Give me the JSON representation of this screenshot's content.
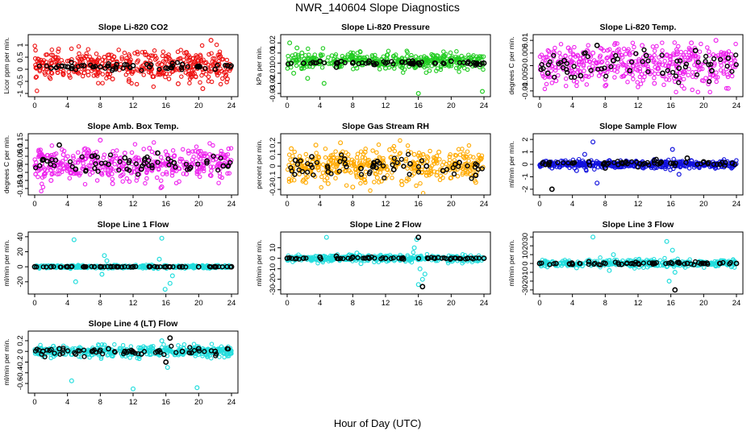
{
  "figure": {
    "title": "NWR_140604  Slope Diagnostics",
    "xlabel": "Hour of Day (UTC)"
  },
  "colors": {
    "red": "#ee1111",
    "green": "#22cc22",
    "magenta": "#ee22ee",
    "orange": "#ffaa00",
    "blue": "#1111dd",
    "cyan": "#22dddd",
    "black": "#000000"
  },
  "chart_data": [
    {
      "type": "scatter",
      "title": "Slope Li-820 CO2",
      "ylabel": "Licor ppm per min.",
      "xlim": [
        0,
        24
      ],
      "xticks": [
        0,
        4,
        8,
        12,
        16,
        20,
        24
      ],
      "ylim": [
        -1.0,
        1.3
      ],
      "yticks": [
        -1.0,
        -0.5,
        0.0,
        0.5,
        1.0
      ],
      "series": [
        {
          "color": "red",
          "x": [
            0.5,
            1.5,
            2.5,
            3.5,
            4.5,
            5.5,
            6.5,
            7.5,
            8.5,
            9.5,
            10.5,
            11.5,
            12.5,
            13.5,
            14.5,
            15.5,
            16.5,
            17.5,
            18.5,
            19.5,
            20.5,
            21.5,
            22.5,
            23.5
          ],
          "y": [
            0.2,
            0.1,
            0.3,
            -0.2,
            0.4,
            0.1,
            -0.1,
            0.3,
            0.5,
            -0.4,
            0.2,
            -0.5,
            0.3,
            0.6,
            -0.3,
            0.2,
            0.4,
            -0.6,
            0.7,
            0.3,
            -0.8,
            1.2,
            0.5,
            -0.4
          ],
          "mean": 0.15,
          "spread": 0.3
        },
        {
          "color": "black",
          "x": [
            2,
            4,
            6,
            8,
            10,
            12,
            14,
            16,
            18,
            20,
            22,
            23.5
          ],
          "y": [
            0.05,
            0.1,
            0.15,
            0.1,
            0.2,
            0.15,
            0.1,
            0.05,
            0.2,
            0.1,
            0.0,
            0.15
          ],
          "mean": 0.1,
          "spread": 0.08
        }
      ]
    },
    {
      "type": "scatter",
      "title": "Slope Li-820 Pressure",
      "ylabel": "kPa per min.",
      "xlim": [
        0,
        24
      ],
      "xticks": [
        0,
        4,
        8,
        12,
        16,
        20,
        24
      ],
      "ylim": [
        -0.03,
        0.025
      ],
      "yticks": [
        -0.03,
        -0.02,
        -0.01,
        0.0,
        0.01,
        0.02
      ],
      "series": [
        {
          "color": "green",
          "x": [
            0.3,
            0.8,
            1.2,
            1.8,
            2.5,
            3.2,
            4.5,
            5.5,
            7,
            8.5,
            10,
            12,
            14,
            16,
            18,
            20,
            22,
            23.8
          ],
          "y": [
            0.02,
            -0.01,
            0.015,
            0.01,
            -0.015,
            0.005,
            -0.02,
            0.0,
            0.005,
            -0.005,
            0.0,
            -0.005,
            0.0,
            -0.03,
            0.0,
            0.005,
            0.0,
            -0.028
          ],
          "mean": 0.002,
          "spread": 0.004
        },
        {
          "color": "black",
          "x": [
            2,
            4,
            6,
            8,
            10,
            12,
            14,
            16,
            18,
            20,
            22,
            24
          ],
          "y": [
            0.0,
            0.002,
            -0.004,
            0.0,
            0.002,
            0.0,
            0.001,
            0.0,
            0.0,
            0.002,
            0.0,
            0.0
          ],
          "mean": 0.0,
          "spread": 0.001
        }
      ]
    },
    {
      "type": "scatter",
      "title": "Slope Li-820 Temp.",
      "ylabel": "degrees C per min.",
      "xlim": [
        0,
        24
      ],
      "xticks": [
        0,
        4,
        8,
        12,
        16,
        20,
        24
      ],
      "ylim": [
        -0.011,
        0.011
      ],
      "yticks": [
        -0.01,
        -0.005,
        0.0,
        0.005,
        0.01
      ],
      "series": [
        {
          "color": "magenta",
          "x": [
            0.5,
            2,
            3.5,
            5,
            6.5,
            8,
            9.5,
            11,
            12.5,
            14,
            15.5,
            17,
            18.5,
            20,
            21.5,
            23
          ],
          "y": [
            0.003,
            -0.006,
            0.007,
            -0.004,
            0.005,
            -0.008,
            0.006,
            -0.003,
            0.008,
            -0.007,
            0.004,
            -0.005,
            0.009,
            -0.006,
            0.01,
            -0.009
          ],
          "mean": 0.0,
          "spread": 0.004
        },
        {
          "color": "black",
          "x": [
            1,
            3,
            5,
            7,
            9,
            11,
            13,
            15,
            17,
            19,
            21,
            23
          ],
          "y": [
            -0.003,
            0.002,
            -0.004,
            0.008,
            0.002,
            -0.002,
            0.004,
            -0.003,
            -0.001,
            0.006,
            -0.002,
            0.003
          ],
          "mean": 0.0,
          "spread": 0.003
        }
      ]
    },
    {
      "type": "scatter",
      "title": "Slope Amb. Box Temp.",
      "ylabel": "degrees C per min.",
      "xlim": [
        0,
        24
      ],
      "xticks": [
        0,
        4,
        8,
        12,
        16,
        20,
        24
      ],
      "ylim": [
        -0.17,
        0.17
      ],
      "yticks": [
        -0.15,
        -0.1,
        -0.05,
        0.0,
        0.05,
        0.1,
        0.15
      ],
      "series": [
        {
          "color": "magenta",
          "x": [
            0.5,
            2,
            3.5,
            5,
            6.5,
            8,
            9.5,
            11,
            12.5,
            14,
            15.5,
            17,
            18.5,
            20,
            21.5,
            23
          ],
          "y": [
            0.08,
            -0.1,
            0.06,
            -0.05,
            0.09,
            0.15,
            -0.12,
            0.07,
            -0.08,
            0.1,
            -0.14,
            0.05,
            -0.06,
            0.08,
            -0.07,
            0.06
          ],
          "mean": 0.0,
          "spread": 0.05
        },
        {
          "color": "black",
          "x": [
            1,
            3,
            5,
            7,
            9,
            11,
            13,
            15,
            17,
            19,
            21,
            23
          ],
          "y": [
            0.03,
            0.12,
            -0.03,
            0.05,
            0.0,
            0.04,
            -0.03,
            0.07,
            0.01,
            -0.02,
            0.02,
            -0.01
          ],
          "mean": 0.0,
          "spread": 0.03
        }
      ]
    },
    {
      "type": "scatter",
      "title": "Slope Gas Stream RH",
      "ylabel": "percent per min.",
      "xlim": [
        0,
        24
      ],
      "xticks": [
        0,
        4,
        8,
        12,
        16,
        20,
        24
      ],
      "ylim": [
        -0.22,
        0.25
      ],
      "yticks": [
        -0.2,
        -0.1,
        0.0,
        0.1,
        0.2
      ],
      "series": [
        {
          "color": "orange",
          "x": [
            0.5,
            2,
            3.5,
            5,
            6.5,
            8,
            9.5,
            11,
            12.5,
            14,
            15.5,
            17,
            18.5,
            20,
            21.5,
            23
          ],
          "y": [
            0.15,
            -0.12,
            0.18,
            -0.15,
            0.2,
            -0.18,
            0.12,
            -0.1,
            0.14,
            -0.16,
            0.1,
            -0.08,
            0.12,
            -0.1,
            0.08,
            -0.14
          ],
          "mean": 0.0,
          "spread": 0.07
        },
        {
          "color": "black",
          "x": [
            1,
            3,
            5,
            7,
            9,
            11,
            13,
            15,
            17,
            19,
            21,
            23
          ],
          "y": [
            0.05,
            0.08,
            -0.05,
            0.06,
            -0.02,
            0.04,
            -0.03,
            0.02,
            0.0,
            -0.04,
            0.03,
            -0.08
          ],
          "mean": 0.0,
          "spread": 0.04
        }
      ]
    },
    {
      "type": "scatter",
      "title": "Slope Sample Flow",
      "ylabel": "ml/min per min.",
      "xlim": [
        0,
        24
      ],
      "xticks": [
        0,
        4,
        8,
        12,
        16,
        20,
        24
      ],
      "ylim": [
        -2.2,
        2.2
      ],
      "yticks": [
        -2,
        -1,
        0,
        1,
        2
      ],
      "series": [
        {
          "color": "blue",
          "x": [
            0.5,
            1.5,
            3,
            4.5,
            5.5,
            6.5,
            7,
            8.5,
            10,
            12,
            14,
            15.5,
            16.2,
            17,
            18.5,
            20,
            22,
            23.5
          ],
          "y": [
            0.2,
            -0.3,
            0.1,
            -0.5,
            0.8,
            1.8,
            -1.5,
            0.3,
            -0.2,
            0.1,
            -0.3,
            0.2,
            1.2,
            -0.8,
            0.3,
            -0.1,
            0.2,
            0.0
          ],
          "mean": 0.0,
          "spread": 0.15
        },
        {
          "color": "black",
          "x": [
            1.5,
            4,
            6,
            8,
            10,
            12,
            14,
            16,
            18,
            20,
            22,
            23.5
          ],
          "y": [
            -2.0,
            0.1,
            0.2,
            -0.3,
            0.1,
            -0.2,
            0.3,
            0.1,
            0.5,
            0.2,
            0.0,
            0.1
          ],
          "mean": 0.05,
          "spread": 0.1
        }
      ]
    },
    {
      "type": "scatter",
      "title": "Slope Line 1 Flow",
      "ylabel": "ml/min per min.",
      "xlim": [
        0,
        24
      ],
      "xticks": [
        0,
        4,
        8,
        12,
        16,
        20,
        24
      ],
      "ylim": [
        -32,
        42
      ],
      "yticks": [
        -20,
        0,
        20,
        40
      ],
      "series": [
        {
          "color": "cyan",
          "x": [
            4.8,
            5.0,
            8.5,
            8.2,
            15.5,
            15.9,
            16.5,
            16.8,
            8.8,
            15.2
          ],
          "y": [
            36,
            -20,
            15,
            -10,
            38,
            -30,
            -22,
            -12,
            8,
            10
          ],
          "mean": 0.0,
          "spread": 1.0
        },
        {
          "color": "black",
          "x": [
            0,
            2,
            4,
            6,
            8,
            10,
            12,
            14,
            16,
            18,
            20,
            22,
            24
          ],
          "y": [
            0,
            0,
            0,
            0,
            0,
            0,
            0,
            0,
            0,
            0,
            0,
            0,
            0
          ],
          "mean": 0.0,
          "spread": 0.3
        }
      ]
    },
    {
      "type": "scatter",
      "title": "Slope Line 2 Flow",
      "ylabel": "ml/min per min.",
      "xlim": [
        0,
        24
      ],
      "xticks": [
        0,
        4,
        8,
        12,
        16,
        20,
        24
      ],
      "ylim": [
        -31,
        22
      ],
      "yticks": [
        -30,
        -20,
        -10,
        0,
        10
      ],
      "series": [
        {
          "color": "cyan",
          "x": [
            4.8,
            15.8,
            16.2,
            16.5,
            16.8,
            15.5,
            8.5,
            9.0,
            16.0
          ],
          "y": [
            20,
            18,
            -10,
            -20,
            -15,
            10,
            5,
            -5,
            -25
          ],
          "mean": 0.0,
          "spread": 1.5
        },
        {
          "color": "black",
          "x": [
            0,
            2,
            4,
            6,
            8,
            10,
            12,
            14,
            16,
            16.5,
            18,
            20,
            22,
            24
          ],
          "y": [
            0,
            0,
            1,
            2,
            1,
            0,
            0,
            0,
            20,
            -27,
            0,
            0,
            0,
            0
          ],
          "mean": 0.0,
          "spread": 0.5
        }
      ]
    },
    {
      "type": "scatter",
      "title": "Slope Line 3 Flow",
      "ylabel": "ml/min per min.",
      "xlim": [
        0,
        24
      ],
      "xticks": [
        0,
        4,
        8,
        12,
        16,
        20,
        24
      ],
      "ylim": [
        -31,
        32
      ],
      "yticks": [
        -30,
        -20,
        -10,
        0,
        10,
        20,
        30
      ],
      "series": [
        {
          "color": "cyan",
          "x": [
            4.5,
            6.5,
            8.5,
            9.0,
            15.5,
            15.8,
            16.2,
            16.5
          ],
          "y": [
            -5,
            30,
            -8,
            10,
            25,
            -20,
            15,
            -10
          ],
          "mean": 0.0,
          "spread": 2.0
        },
        {
          "color": "black",
          "x": [
            0,
            2,
            4,
            6,
            8,
            10,
            12,
            14,
            16,
            16.5,
            18,
            20,
            22,
            24
          ],
          "y": [
            0,
            0,
            -1,
            2,
            0,
            -1,
            0,
            0,
            1,
            -30,
            0,
            0,
            0,
            0
          ],
          "mean": 0.0,
          "spread": 0.8
        }
      ]
    },
    {
      "type": "scatter",
      "title": "Slope Line 4 (LT) Flow",
      "ylabel": "ml/min per min.",
      "xlim": [
        0,
        24
      ],
      "xticks": [
        0,
        4,
        8,
        12,
        16,
        20,
        24
      ],
      "ylim": [
        -0.72,
        0.32
      ],
      "yticks": [
        -0.6,
        -0.4,
        -0.2,
        0.0,
        0.2
      ],
      "series": [
        {
          "color": "cyan",
          "x": [
            4.5,
            12.0,
            15.5,
            19.8,
            3.5,
            8.5,
            16.2,
            20.5
          ],
          "y": [
            -0.55,
            -0.7,
            0.2,
            -0.68,
            0.1,
            0.12,
            -0.3,
            0.05
          ],
          "mean": 0.0,
          "spread": 0.05
        },
        {
          "color": "black",
          "x": [
            1,
            3,
            5,
            7,
            9,
            11,
            13,
            15,
            16,
            16.5,
            18,
            20,
            22,
            23.5
          ],
          "y": [
            0.0,
            0.05,
            -0.05,
            0.0,
            0.05,
            0.0,
            -0.05,
            0.0,
            -0.2,
            0.25,
            0.0,
            0.05,
            0.0,
            0.05
          ],
          "mean": 0.0,
          "spread": 0.04
        }
      ]
    }
  ]
}
